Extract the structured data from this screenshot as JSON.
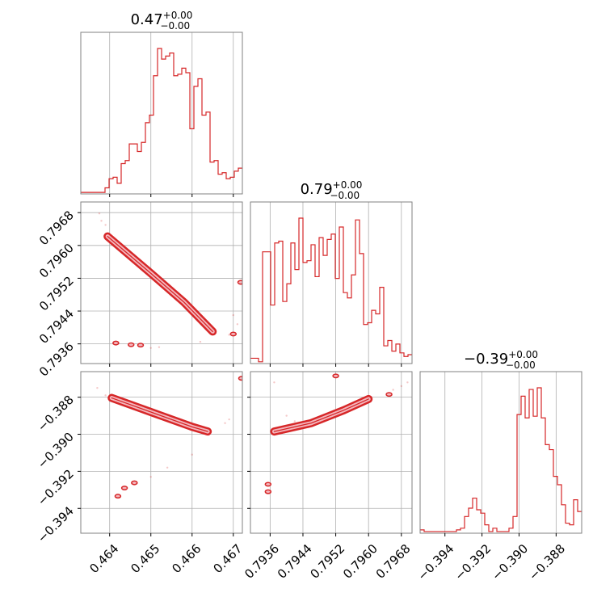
{
  "chart_data": {
    "type": "corner",
    "color": "#d62728",
    "contour_fill": "#f4b6bd",
    "grid": true,
    "params": [
      {
        "range": [
          0.4633,
          0.46722
        ],
        "ticks": [
          0.464,
          0.465,
          0.466,
          0.467
        ],
        "tick_labels": [
          "0.464",
          "0.465",
          "0.466",
          "0.467"
        ],
        "title": {
          "value": "0.47",
          "plus": "+0.00",
          "minus": "−0.00"
        }
      },
      {
        "range": [
          0.79312,
          0.79706
        ],
        "ticks": [
          0.7936,
          0.7944,
          0.7952,
          0.796,
          0.7968
        ],
        "tick_labels": [
          "0.7936",
          "0.7944",
          "0.7952",
          "0.7960",
          "0.7968"
        ],
        "title": {
          "value": "0.79",
          "plus": "+0.00",
          "minus": "−0.00"
        }
      },
      {
        "range": [
          -0.39534,
          -0.38662
        ],
        "ticks": [
          -0.394,
          -0.392,
          -0.39,
          -0.388
        ],
        "tick_labels": [
          "−0.394",
          "−0.392",
          "−0.390",
          "−0.388"
        ],
        "title": {
          "value": "−0.39",
          "plus": "+0.00",
          "minus": "−0.00"
        }
      }
    ],
    "hist": [
      {
        "bins": 40,
        "counts": [
          1,
          1,
          1,
          1,
          1,
          1,
          4,
          10,
          11,
          7,
          20,
          22,
          33,
          33,
          28,
          34,
          47,
          52,
          78,
          96,
          89,
          91,
          93,
          78,
          79,
          83,
          80,
          43,
          71,
          76,
          52,
          54,
          21,
          22,
          13,
          14,
          10,
          11,
          15,
          17
        ]
      },
      {
        "bins": 40,
        "counts": [
          3,
          3,
          1,
          63,
          63,
          33,
          68,
          69,
          35,
          45,
          68,
          53,
          82,
          57,
          58,
          67,
          49,
          71,
          61,
          70,
          73,
          48,
          77,
          40,
          37,
          50,
          81,
          62,
          22,
          23,
          30,
          28,
          43,
          10,
          13,
          7,
          11,
          6,
          4,
          5
        ]
      },
      {
        "bins": 40,
        "counts": [
          2,
          1,
          1,
          1,
          1,
          1,
          1,
          1,
          1,
          2,
          3,
          10,
          15,
          21,
          14,
          12,
          5,
          1,
          3,
          1,
          1,
          1,
          3,
          10,
          71,
          82,
          69,
          86,
          70,
          87,
          69,
          53,
          50,
          34,
          29,
          17,
          6,
          5,
          20,
          13
        ]
      }
    ],
    "pairs": [
      {
        "row": 1,
        "col": 0,
        "ridge": [
          [
            0.46395,
            0.79622
          ],
          [
            0.465,
            0.79532
          ],
          [
            0.4658,
            0.79462
          ],
          [
            0.4665,
            0.7939
          ]
        ],
        "islands": [
          [
            0.46415,
            0.79362
          ],
          [
            0.46452,
            0.79358
          ],
          [
            0.46475,
            0.79357
          ],
          [
            0.467,
            0.79384
          ],
          [
            0.46718,
            0.7951
          ]
        ],
        "scatter": [
          [
            0.46375,
            0.79678
          ],
          [
            0.4639,
            0.7965
          ],
          [
            0.4638,
            0.7966
          ],
          [
            0.4669,
            0.79382
          ],
          [
            0.4671,
            0.79408
          ],
          [
            0.467,
            0.7943
          ],
          [
            0.465,
            0.7935
          ],
          [
            0.4652,
            0.79352
          ],
          [
            0.4662,
            0.79365
          ]
        ]
      },
      {
        "row": 2,
        "col": 0,
        "ridge": [
          [
            0.46405,
            -0.38804
          ],
          [
            0.465,
            -0.3888
          ],
          [
            0.466,
            -0.3896
          ],
          [
            0.46638,
            -0.38985
          ]
        ],
        "islands": [
          [
            0.4642,
            -0.39334
          ],
          [
            0.46436,
            -0.3929
          ],
          [
            0.4646,
            -0.39262
          ],
          [
            0.4672,
            -0.38698
          ]
        ],
        "scatter": [
          [
            0.4637,
            -0.3875
          ],
          [
            0.4639,
            -0.3879
          ],
          [
            0.465,
            -0.3923
          ],
          [
            0.4654,
            -0.3918
          ],
          [
            0.466,
            -0.3911
          ],
          [
            0.4668,
            -0.3894
          ],
          [
            0.4669,
            -0.3892
          ]
        ]
      },
      {
        "row": 2,
        "col": 1,
        "ridge": [
          [
            0.7937,
            -0.38985
          ],
          [
            0.7946,
            -0.3894
          ],
          [
            0.7954,
            -0.3887
          ],
          [
            0.796,
            -0.3881
          ]
        ],
        "islands": [
          [
            0.79355,
            -0.3927
          ],
          [
            0.79355,
            -0.3931
          ],
          [
            0.7952,
            -0.38685
          ],
          [
            0.7965,
            -0.38785
          ]
        ],
        "scatter": [
          [
            0.7937,
            -0.3872
          ],
          [
            0.794,
            -0.389
          ],
          [
            0.7942,
            -0.3893
          ],
          [
            0.7966,
            -0.3876
          ],
          [
            0.7968,
            -0.3874
          ],
          [
            0.79695,
            -0.3872
          ]
        ]
      }
    ]
  }
}
